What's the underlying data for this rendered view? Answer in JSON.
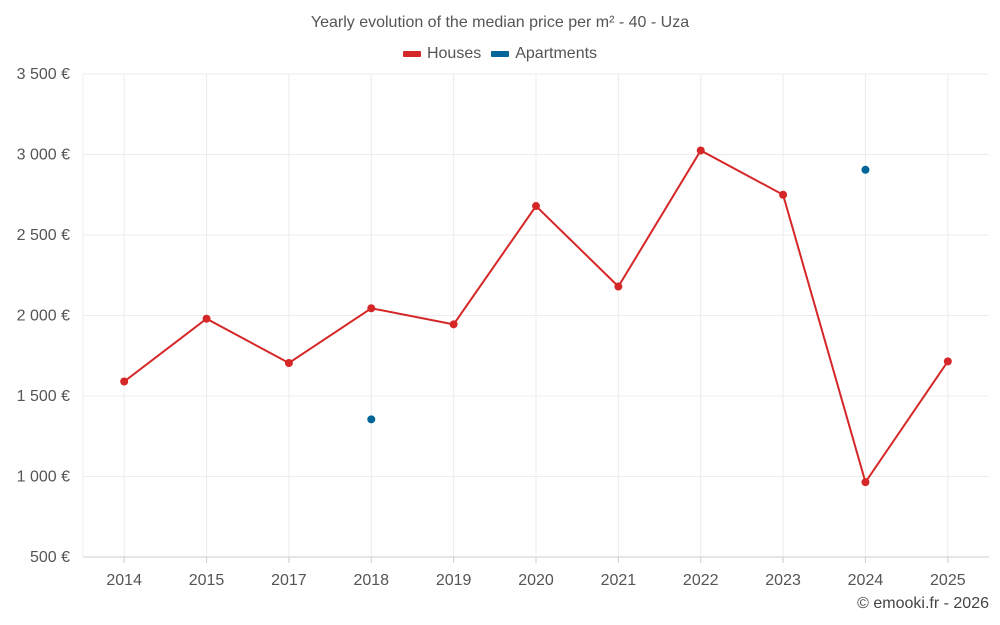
{
  "chart_data": {
    "type": "line",
    "title": "Yearly evolution of the median price per m² - 40 - Uza",
    "categories": [
      "2014",
      "2015",
      "2017",
      "2018",
      "2019",
      "2020",
      "2021",
      "2022",
      "2023",
      "2024",
      "2025"
    ],
    "series": [
      {
        "name": "Houses",
        "color": "#d62728",
        "values": [
          1590,
          1980,
          1705,
          2045,
          1945,
          2680,
          2180,
          3025,
          2750,
          965,
          1715
        ]
      },
      {
        "name": "Apartments",
        "color": "#006699",
        "values": [
          null,
          null,
          null,
          1355,
          null,
          null,
          null,
          null,
          null,
          2905,
          null
        ]
      }
    ],
    "y_ticks": [
      "3 500 €",
      "3 000 €",
      "2 500 €",
      "2 000 €",
      "1 500 €",
      "1 000 €",
      "500 €"
    ],
    "y_tick_values": [
      3500,
      3000,
      2500,
      2000,
      1500,
      1000,
      500
    ],
    "ylim": [
      500,
      3500
    ],
    "grid": true,
    "legend_position": "top-center",
    "credit": "© emooki.fr - 2026"
  }
}
